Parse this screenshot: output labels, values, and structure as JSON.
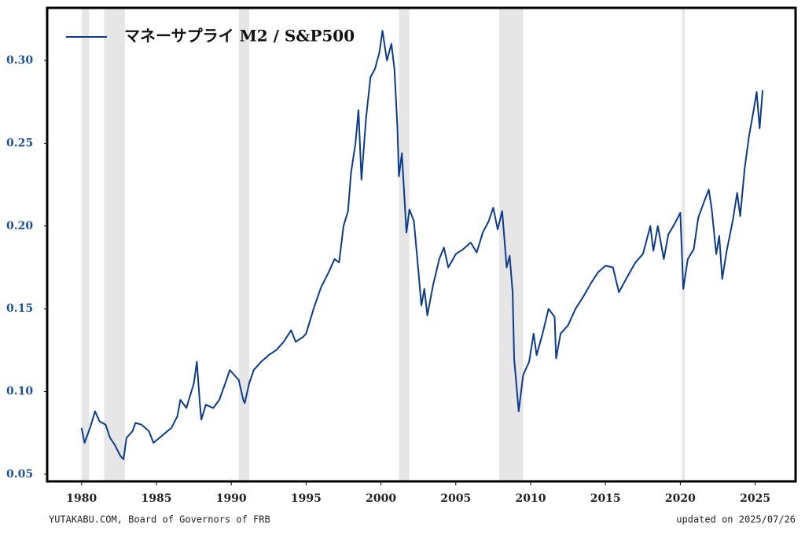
{
  "chart_data": {
    "type": "line",
    "x": [
      1980.0,
      1980.2,
      1980.6,
      1980.9,
      1981.2,
      1981.6,
      1981.9,
      1982.2,
      1982.6,
      1982.8,
      1983.0,
      1983.4,
      1983.6,
      1984.0,
      1984.5,
      1984.8,
      1985.2,
      1985.6,
      1986.0,
      1986.4,
      1986.6,
      1987.0,
      1987.5,
      1987.7,
      1987.9,
      1988.0,
      1988.3,
      1988.8,
      1989.2,
      1989.6,
      1989.9,
      1990.2,
      1990.5,
      1990.8,
      1990.9,
      1991.2,
      1991.5,
      1992.0,
      1992.5,
      1993.0,
      1993.5,
      1994.0,
      1994.3,
      1994.8,
      1995.0,
      1995.5,
      1996.0,
      1996.5,
      1996.9,
      1997.2,
      1997.5,
      1997.8,
      1998.0,
      1998.3,
      1998.5,
      1998.7,
      1999.0,
      1999.3,
      1999.6,
      1999.9,
      2000.1,
      2000.4,
      2000.7,
      2000.9,
      2001.1,
      2001.2,
      2001.4,
      2001.7,
      2001.9,
      2002.2,
      2002.5,
      2002.7,
      2002.9,
      2003.1,
      2003.5,
      2003.9,
      2004.2,
      2004.5,
      2005.0,
      2005.5,
      2006.0,
      2006.4,
      2006.8,
      2007.2,
      2007.5,
      2007.8,
      2008.1,
      2008.4,
      2008.6,
      2008.8,
      2008.9,
      2009.2,
      2009.5,
      2009.9,
      2010.2,
      2010.4,
      2010.8,
      2011.2,
      2011.6,
      2011.7,
      2012.0,
      2012.5,
      2013.0,
      2013.5,
      2014.0,
      2014.5,
      2015.0,
      2015.5,
      2015.9,
      2016.2,
      2016.5,
      2017.0,
      2017.5,
      2018.0,
      2018.2,
      2018.5,
      2018.9,
      2019.2,
      2019.6,
      2020.0,
      2020.2,
      2020.5,
      2020.9,
      2021.2,
      2021.6,
      2021.9,
      2022.1,
      2022.4,
      2022.6,
      2022.8,
      2023.1,
      2023.5,
      2023.8,
      2024.0,
      2024.3,
      2024.6,
      2024.9,
      2025.1,
      2025.2,
      2025.3,
      2025.5
    ],
    "series": [
      {
        "name": "マネーサプライ M2 / S&P500",
        "color": "#0d3b8c",
        "values": [
          0.078,
          0.069,
          0.079,
          0.088,
          0.082,
          0.08,
          0.072,
          0.068,
          0.061,
          0.059,
          0.072,
          0.076,
          0.081,
          0.08,
          0.076,
          0.069,
          0.072,
          0.075,
          0.078,
          0.085,
          0.095,
          0.09,
          0.105,
          0.118,
          0.093,
          0.083,
          0.092,
          0.09,
          0.095,
          0.105,
          0.113,
          0.11,
          0.107,
          0.095,
          0.093,
          0.105,
          0.113,
          0.118,
          0.122,
          0.125,
          0.13,
          0.137,
          0.13,
          0.133,
          0.135,
          0.15,
          0.163,
          0.172,
          0.18,
          0.178,
          0.2,
          0.209,
          0.232,
          0.25,
          0.27,
          0.228,
          0.265,
          0.29,
          0.295,
          0.305,
          0.318,
          0.3,
          0.31,
          0.295,
          0.26,
          0.23,
          0.244,
          0.196,
          0.21,
          0.203,
          0.173,
          0.152,
          0.162,
          0.146,
          0.165,
          0.18,
          0.187,
          0.175,
          0.183,
          0.186,
          0.19,
          0.184,
          0.196,
          0.203,
          0.211,
          0.198,
          0.209,
          0.175,
          0.182,
          0.16,
          0.12,
          0.088,
          0.11,
          0.118,
          0.135,
          0.122,
          0.135,
          0.15,
          0.145,
          0.12,
          0.135,
          0.14,
          0.15,
          0.157,
          0.165,
          0.172,
          0.176,
          0.175,
          0.16,
          0.165,
          0.17,
          0.178,
          0.183,
          0.2,
          0.185,
          0.2,
          0.18,
          0.195,
          0.201,
          0.208,
          0.162,
          0.18,
          0.186,
          0.205,
          0.215,
          0.222,
          0.21,
          0.183,
          0.194,
          0.168,
          0.185,
          0.203,
          0.22,
          0.206,
          0.235,
          0.255,
          0.27,
          0.281,
          0.27,
          0.259,
          0.282
        ]
      }
    ],
    "shaded_periods": [
      [
        1980.0,
        1980.5
      ],
      [
        1981.5,
        1982.9
      ],
      [
        1990.5,
        1991.2
      ],
      [
        2001.2,
        2001.9
      ],
      [
        2007.9,
        2009.5
      ],
      [
        2020.1,
        2020.3
      ]
    ],
    "xlim": [
      1977.7,
      2027.7
    ],
    "xticks": [
      1980,
      1985,
      1990,
      1995,
      2000,
      2005,
      2010,
      2015,
      2020,
      2025
    ],
    "ylim": [
      0.0457,
      0.3318
    ],
    "yticks": [
      {
        "value": 0.05,
        "label": "0.05"
      },
      {
        "value": 0.1,
        "label": "0.10"
      },
      {
        "value": 0.15,
        "label": "0.15"
      },
      {
        "value": 0.2,
        "label": "0.20"
      },
      {
        "value": 0.25,
        "label": "0.25"
      },
      {
        "value": 0.3,
        "label": "0.30"
      }
    ],
    "legend": "upper left",
    "grid": false,
    "source": "YUTAKABU.COM, Board of Governors of FRB",
    "updated": "updated on 2025/07/26"
  }
}
